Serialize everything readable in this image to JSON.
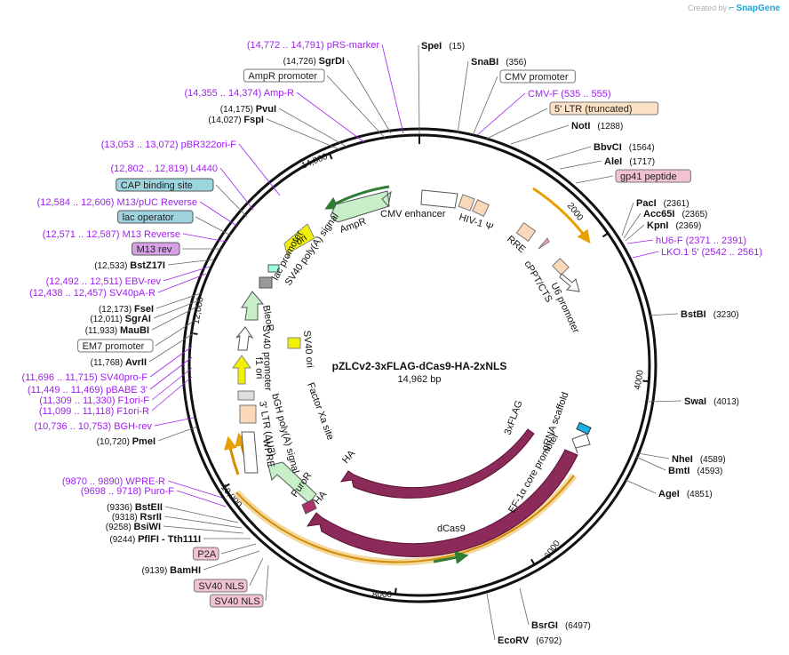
{
  "credit": {
    "prefix": "Created by",
    "brand": "SnapGene"
  },
  "plasmid": {
    "name": "pZLCv2-3xFLAG-dCas9-HA-2xNLS",
    "size_label": "14,962 bp"
  },
  "ruler": [
    "2000",
    "4000",
    "6000",
    "8000",
    "10,000",
    "12,000",
    "14,000"
  ],
  "colors": {
    "primer": "#a020f0",
    "site": "#000000",
    "cas9": "#8c2a5a",
    "orange": "#e6a000",
    "green": "#2e7d32"
  },
  "labels": {
    "right": [
      {
        "text": "SpeI",
        "pos": "(15)",
        "kind": "site"
      },
      {
        "text": "SnaBI",
        "pos": "(356)",
        "kind": "site"
      },
      {
        "text": "CMV promoter",
        "pos": "",
        "kind": "box-white"
      },
      {
        "text": "CMV-F",
        "pos": "(535 .. 555)",
        "kind": "primer"
      },
      {
        "text": "5' LTR (truncated)",
        "pos": "",
        "kind": "box-peach"
      },
      {
        "text": "NotI",
        "pos": "(1288)",
        "kind": "site"
      },
      {
        "text": "BbvCI",
        "pos": "(1564)",
        "kind": "site"
      },
      {
        "text": "AleI",
        "pos": "(1717)",
        "kind": "site"
      },
      {
        "text": "gp41 peptide",
        "pos": "",
        "kind": "box-pink"
      },
      {
        "text": "PacI",
        "pos": "(2361)",
        "kind": "site"
      },
      {
        "text": "Acc65I",
        "pos": "(2365)",
        "kind": "site"
      },
      {
        "text": "KpnI",
        "pos": "(2369)",
        "kind": "site"
      },
      {
        "text": "hU6-F",
        "pos": "(2371 .. 2391)",
        "kind": "primer"
      },
      {
        "text": "LKO.1 5'",
        "pos": "(2542 .. 2561)",
        "kind": "primer"
      },
      {
        "text": "BstBI",
        "pos": "(3230)",
        "kind": "site"
      },
      {
        "text": "SwaI",
        "pos": "(4013)",
        "kind": "site"
      },
      {
        "text": "NheI",
        "pos": "(4589)",
        "kind": "site"
      },
      {
        "text": "BmtI",
        "pos": "(4593)",
        "kind": "site"
      },
      {
        "text": "AgeI",
        "pos": "(4851)",
        "kind": "site"
      },
      {
        "text": "BsrGI",
        "pos": "(6497)",
        "kind": "site"
      },
      {
        "text": "EcoRV",
        "pos": "(6792)",
        "kind": "site"
      }
    ],
    "left": [
      {
        "text": "pRS-marker",
        "pos": "(14,772 .. 14,791)",
        "kind": "primer"
      },
      {
        "text": "SgrDI",
        "pos": "(14,726)",
        "kind": "site"
      },
      {
        "text": "AmpR promoter",
        "pos": "",
        "kind": "box-white"
      },
      {
        "text": "Amp-R",
        "pos": "(14,355 .. 14,374)",
        "kind": "primer"
      },
      {
        "text": "PvuI",
        "pos": "(14,175)",
        "kind": "site"
      },
      {
        "text": "FspI",
        "pos": "(14,027)",
        "kind": "site"
      },
      {
        "text": "pBR322ori-F",
        "pos": "(13,053 .. 13,072)",
        "kind": "primer"
      },
      {
        "text": "L4440",
        "pos": "(12,802 .. 12,819)",
        "kind": "primer"
      },
      {
        "text": "CAP binding site",
        "pos": "",
        "kind": "box-teal"
      },
      {
        "text": "M13/pUC Reverse",
        "pos": "(12,584 .. 12,606)",
        "kind": "primer"
      },
      {
        "text": "lac operator",
        "pos": "",
        "kind": "box-teal"
      },
      {
        "text": "M13 Reverse",
        "pos": "(12,571 .. 12,587)",
        "kind": "primer"
      },
      {
        "text": "M13 rev",
        "pos": "",
        "kind": "box-purple"
      },
      {
        "text": "BstZ17I",
        "pos": "(12,533)",
        "kind": "site"
      },
      {
        "text": "EBV-rev",
        "pos": "(12,492 .. 12,511)",
        "kind": "primer"
      },
      {
        "text": "SV40pA-R",
        "pos": "(12,438 .. 12,457)",
        "kind": "primer"
      },
      {
        "text": "FseI",
        "pos": "(12,173)",
        "kind": "site"
      },
      {
        "text": "SgrAI",
        "pos": "(12,011)",
        "kind": "site"
      },
      {
        "text": "MauBI",
        "pos": "(11,933)",
        "kind": "site"
      },
      {
        "text": "EM7 promoter",
        "pos": "",
        "kind": "box-white"
      },
      {
        "text": "AvrII",
        "pos": "(11,768)",
        "kind": "site"
      },
      {
        "text": "SV40pro-F",
        "pos": "(11,696 .. 11,715)",
        "kind": "primer"
      },
      {
        "text": "pBABE 3'",
        "pos": "(11,449 .. 11,469)",
        "kind": "primer"
      },
      {
        "text": "F1ori-F",
        "pos": "(11,309 .. 11,330)",
        "kind": "primer"
      },
      {
        "text": "F1ori-R",
        "pos": "(11,099 .. 11,118)",
        "kind": "primer"
      },
      {
        "text": "BGH-rev",
        "pos": "(10,736 .. 10,753)",
        "kind": "primer"
      },
      {
        "text": "PmeI",
        "pos": "(10,720)",
        "kind": "site"
      },
      {
        "text": "WPRE-R",
        "pos": "(9870 .. 9890)",
        "kind": "primer"
      },
      {
        "text": "Puro-F",
        "pos": "(9698 .. 9718)",
        "kind": "primer"
      },
      {
        "text": "BstEII",
        "pos": "(9336)",
        "kind": "site"
      },
      {
        "text": "RsrII",
        "pos": "(9318)",
        "kind": "site"
      },
      {
        "text": "BsiWI",
        "pos": "(9258)",
        "kind": "site"
      },
      {
        "text": "PflFI  - Tth111I",
        "pos": "(9244)",
        "kind": "site"
      },
      {
        "text": "P2A",
        "pos": "",
        "kind": "box-pink"
      },
      {
        "text": "BamHI",
        "pos": "(9139)",
        "kind": "site"
      },
      {
        "text": "SV40 NLS",
        "pos": "",
        "kind": "box-pink"
      },
      {
        "text": "SV40 NLS",
        "pos": "",
        "kind": "box-pink"
      }
    ]
  },
  "features_inner": [
    "CMV enhancer",
    "HIV-1 Ψ",
    "RRE",
    "cPPT/CTS",
    "U6 promoter",
    "gRNA scaffold",
    "EF-1α core promoter",
    "3xFLAG",
    "Cas9",
    "dCas9",
    "HA",
    "HA",
    "PuroR",
    "Factor Xa site",
    "WPRE",
    "3' LTR (ΔU3)",
    "bGH poly(A) signal",
    "f1 ori",
    "SV40 promoter",
    "SV40 ori",
    "BleoR",
    "lac promoter",
    "SV40 poly(A) signal",
    "ori",
    "AmpR"
  ]
}
